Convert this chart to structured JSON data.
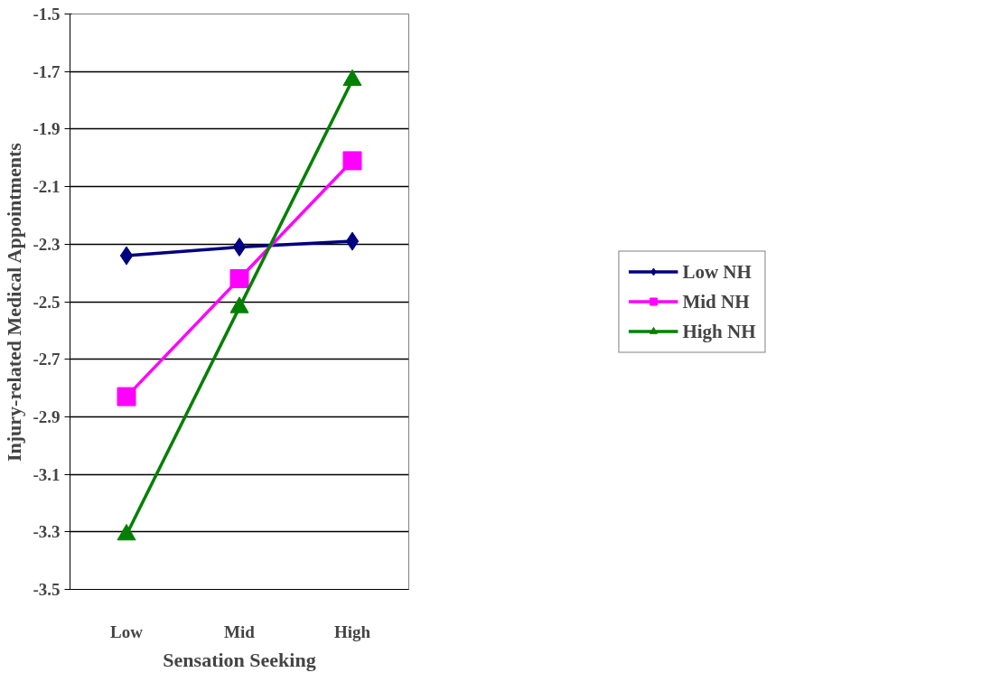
{
  "chart_data": {
    "type": "line",
    "xlabel": "Sensation Seeking",
    "ylabel": "Injury-related Medical Appointments",
    "categories": [
      "Low",
      "Mid",
      "High"
    ],
    "series": [
      {
        "name": "Low NH",
        "color": "#000080",
        "marker": "diamond",
        "values": [
          -2.34,
          -2.31,
          -2.29
        ]
      },
      {
        "name": "Mid NH",
        "color": "#ff00ff",
        "marker": "square",
        "values": [
          -2.83,
          -2.42,
          -2.01
        ]
      },
      {
        "name": "High NH",
        "color": "#008000",
        "marker": "triangle",
        "values": [
          -3.31,
          -2.52,
          -1.73
        ]
      }
    ],
    "ylim": [
      -3.5,
      -1.5
    ],
    "yticks": [
      -3.5,
      -3.3,
      -3.1,
      -2.9,
      -2.7,
      -2.5,
      -2.3,
      -2.1,
      -1.9,
      -1.7,
      -1.5
    ],
    "grid": "y",
    "legend": "right",
    "line_style": "solid"
  }
}
